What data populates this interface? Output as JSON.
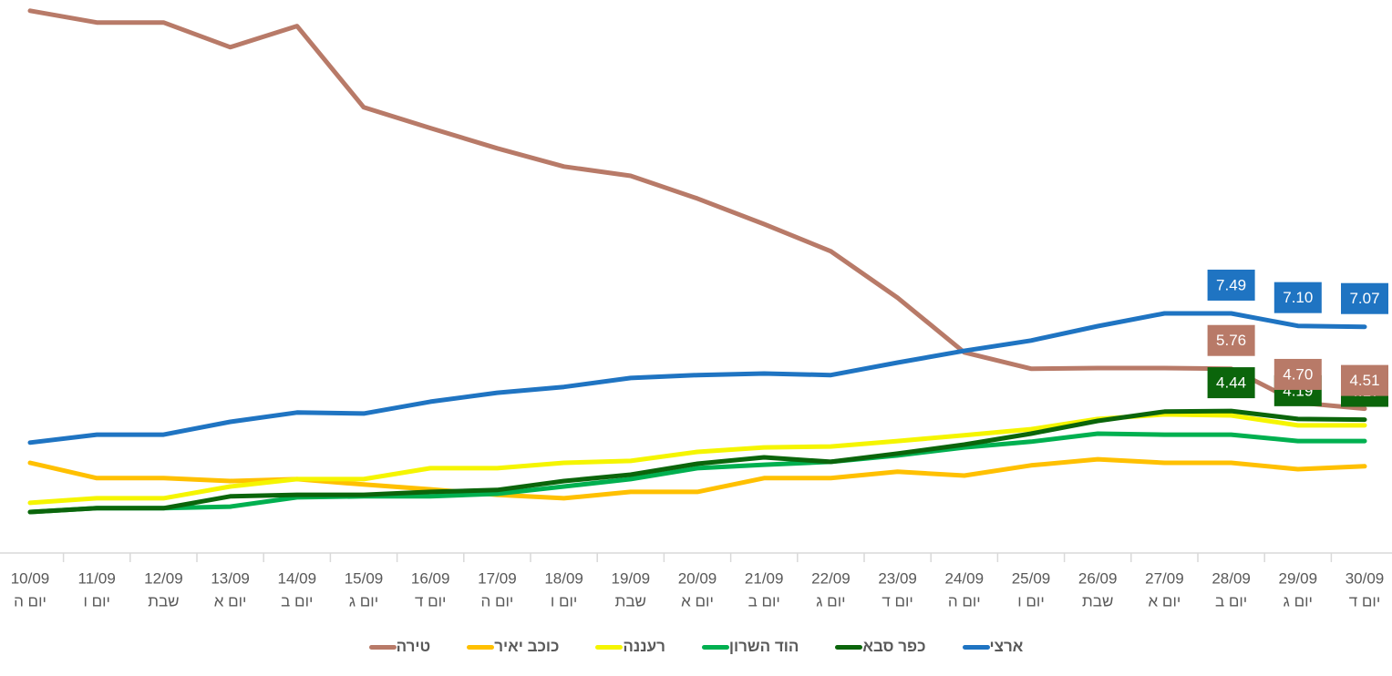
{
  "chart_data": {
    "type": "line",
    "categories": [
      "10/09",
      "11/09",
      "12/09",
      "13/09",
      "14/09",
      "15/09",
      "16/09",
      "17/09",
      "18/09",
      "19/09",
      "20/09",
      "21/09",
      "22/09",
      "23/09",
      "24/09",
      "25/09",
      "26/09",
      "27/09",
      "28/09",
      "29/09",
      "30/09"
    ],
    "weekdays": [
      "יום ה",
      "יום ו",
      "שבת",
      "יום א",
      "יום ב",
      "יום ג",
      "יום ד",
      "יום ה",
      "יום ו",
      "שבת",
      "יום א",
      "יום ב",
      "יום ג",
      "יום ד",
      "יום ה",
      "יום ו",
      "שבת",
      "יום א",
      "יום ב",
      "יום ג",
      "יום ד"
    ],
    "ylim": [
      0,
      17
    ],
    "series": [
      {
        "name": "ארצי",
        "color": "#1f74c2",
        "values": [
          3.45,
          3.7,
          3.7,
          4.1,
          4.39,
          4.36,
          4.73,
          5.01,
          5.19,
          5.47,
          5.56,
          5.61,
          5.56,
          5.95,
          6.32,
          6.64,
          7.09,
          7.49,
          7.49,
          7.1,
          7.07
        ],
        "value_labels": [
          null,
          null,
          null,
          null,
          null,
          null,
          null,
          null,
          null,
          null,
          null,
          null,
          null,
          null,
          null,
          null,
          null,
          null,
          "7.49",
          "7.10",
          "7.07"
        ]
      },
      {
        "name": "כפר סבא",
        "color": "#0b650b",
        "values": [
          1.28,
          1.4,
          1.4,
          1.77,
          1.82,
          1.82,
          1.91,
          1.97,
          2.25,
          2.45,
          2.79,
          2.99,
          2.85,
          3.11,
          3.39,
          3.73,
          4.13,
          4.42,
          4.44,
          4.19,
          4.17
        ],
        "value_labels": [
          null,
          null,
          null,
          null,
          null,
          null,
          null,
          null,
          null,
          null,
          null,
          null,
          null,
          null,
          null,
          null,
          null,
          null,
          "4.44",
          "4.19",
          "4.17"
        ]
      },
      {
        "name": "הוד השרון",
        "color": "#00b050",
        "values": [
          1.28,
          1.4,
          1.4,
          1.45,
          1.74,
          1.77,
          1.77,
          1.85,
          2.08,
          2.31,
          2.65,
          2.76,
          2.85,
          3.05,
          3.3,
          3.48,
          3.73,
          3.7,
          3.7,
          3.5,
          3.5
        ]
      },
      {
        "name": "רעננה",
        "color": "#f5f500",
        "values": [
          1.57,
          1.71,
          1.71,
          2.08,
          2.31,
          2.31,
          2.65,
          2.65,
          2.82,
          2.88,
          3.16,
          3.3,
          3.33,
          3.5,
          3.68,
          3.87,
          4.19,
          4.33,
          4.3,
          3.99,
          3.99
        ]
      },
      {
        "name": "כוכב יאיר",
        "color": "#ffc000",
        "values": [
          2.82,
          2.34,
          2.34,
          2.25,
          2.31,
          2.14,
          1.99,
          1.82,
          1.71,
          1.91,
          1.91,
          2.34,
          2.34,
          2.54,
          2.42,
          2.74,
          2.93,
          2.82,
          2.82,
          2.62,
          2.71
        ]
      },
      {
        "name": "טירה",
        "color": "#b87a68",
        "values": [
          16.95,
          16.58,
          16.58,
          15.81,
          16.47,
          13.93,
          13.28,
          12.65,
          12.08,
          11.79,
          11.08,
          10.28,
          9.43,
          7.98,
          6.27,
          5.76,
          5.78,
          5.78,
          5.76,
          4.7,
          4.51
        ],
        "value_labels": [
          null,
          null,
          null,
          null,
          null,
          null,
          null,
          null,
          null,
          null,
          null,
          null,
          null,
          null,
          null,
          null,
          null,
          null,
          "5.76",
          "4.70",
          "4.51"
        ]
      }
    ]
  }
}
